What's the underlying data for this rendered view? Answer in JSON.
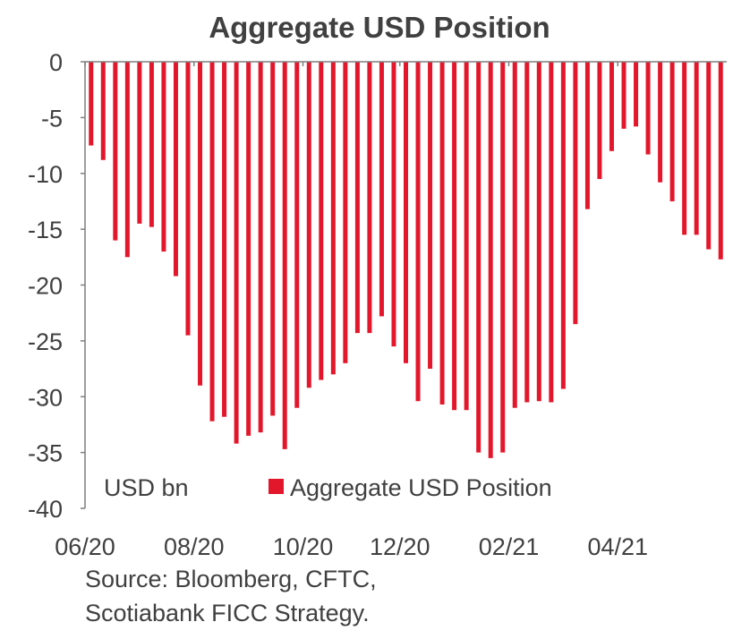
{
  "chart_data": {
    "type": "bar",
    "title": "Aggregate USD Position",
    "unit_label": "USD bn",
    "series": [
      {
        "name": "Aggregate USD Position",
        "color": "#e3172b",
        "values": [
          -7.5,
          -8.8,
          -16.0,
          -17.5,
          -14.5,
          -14.8,
          -17.0,
          -19.2,
          -24.5,
          -29.0,
          -32.2,
          -31.8,
          -34.2,
          -33.5,
          -33.2,
          -31.7,
          -34.7,
          -31.0,
          -29.2,
          -28.5,
          -28.0,
          -27.0,
          -24.3,
          -24.3,
          -22.8,
          -25.5,
          -27.0,
          -30.4,
          -27.5,
          -30.7,
          -31.2,
          -31.2,
          -35.0,
          -35.5,
          -35.0,
          -31.0,
          -30.5,
          -30.4,
          -30.5,
          -29.3,
          -23.5,
          -13.2,
          -10.5,
          -8.0,
          -6.0,
          -5.8,
          -8.3,
          -10.8,
          -12.5,
          -15.5,
          -15.5,
          -16.8,
          -17.7
        ]
      }
    ],
    "ylim": [
      -40,
      0
    ],
    "yticks": [
      "0",
      "-5",
      "-10",
      "-15",
      "-20",
      "-25",
      "-30",
      "-35",
      "-40"
    ],
    "xticks": [
      {
        "label": "06/20",
        "index": 0
      },
      {
        "label": "08/20",
        "index": 9
      },
      {
        "label": "10/20",
        "index": 18
      },
      {
        "label": "12/20",
        "index": 26
      },
      {
        "label": "02/21",
        "index": 35
      },
      {
        "label": "04/21",
        "index": 44
      }
    ],
    "legend": "bottom-center, inside plot",
    "grid": false
  },
  "source": {
    "line1": "Source: Bloomberg, CFTC,",
    "line2": "Scotiabank FICC  Strategy."
  }
}
